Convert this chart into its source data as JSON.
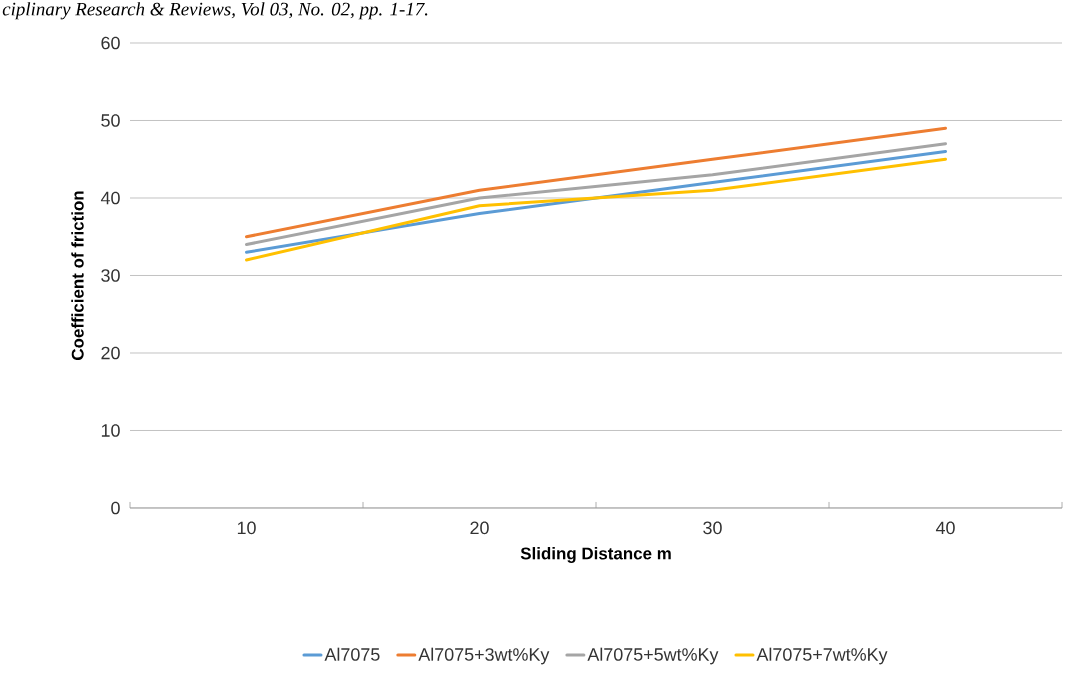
{
  "chart_data": {
    "type": "line",
    "annotations": [
      "ciplinary Research & Reviews, Vol 03, No. 02, pp. 1-17."
    ],
    "xlabel": "Sliding Distance m",
    "ylabel": "Coefficient of friction",
    "categories": [
      "10",
      "20",
      "30",
      "40"
    ],
    "ylim": [
      0,
      60
    ],
    "yticks": [
      0,
      10,
      20,
      30,
      40,
      50,
      60
    ],
    "grid": "y",
    "legend": "bottom",
    "series": [
      {
        "name": "Al7075",
        "color": "#5b9bd5",
        "values": [
          33,
          38,
          42,
          46
        ]
      },
      {
        "name": "Al7075+3wt%Ky",
        "color": "#ed7d31",
        "values": [
          35,
          41,
          45,
          49
        ]
      },
      {
        "name": "Al7075+5wt%Ky",
        "color": "#a5a5a5",
        "values": [
          34,
          40,
          43,
          47
        ]
      },
      {
        "name": "Al7075+7wt%Ky",
        "color": "#ffc000",
        "values": [
          32,
          39,
          41,
          45
        ]
      }
    ]
  }
}
